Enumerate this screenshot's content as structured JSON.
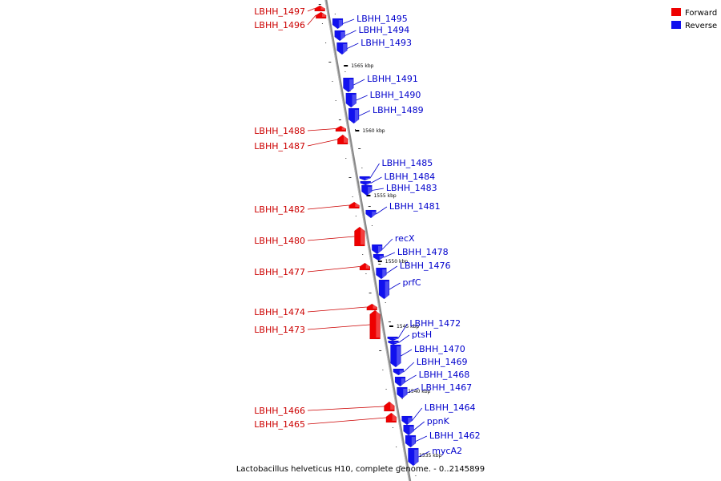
{
  "legend": [
    {
      "label": "Forward",
      "color": "#ee0000"
    },
    {
      "label": "Reverse",
      "color": "#1111ee"
    }
  ],
  "caption": "Lactobacillus helveticus H10, complete genome. - 0..2145899",
  "kbp_marks": [
    "1565 kbp",
    "1560 kbp",
    "1555 kbp",
    "1550 kbp",
    "1545 kbp",
    "1540 kbp",
    "1535 kbp"
  ],
  "forward_genes": [
    "LBHH_1497",
    "LBHH_1496",
    "LBHH_1488",
    "LBHH_1487",
    "LBHH_1482",
    "LBHH_1480",
    "LBHH_1477",
    "LBHH_1474",
    "LBHH_1473",
    "LBHH_1466",
    "LBHH_1465"
  ],
  "reverse_genes": [
    "LBHH_1495",
    "LBHH_1494",
    "LBHH_1493",
    "LBHH_1491",
    "LBHH_1490",
    "LBHH_1489",
    "LBHH_1485",
    "LBHH_1484",
    "LBHH_1483",
    "LBHH_1481",
    "recX",
    "LBHH_1478",
    "LBHH_1476",
    "prfC",
    "LBHH_1472",
    "ptsH",
    "LBHH_1470",
    "LBHH_1469",
    "LBHH_1468",
    "LBHH_1467",
    "LBHH_1464",
    "ppnK",
    "LBHH_1462",
    "mycA2"
  ]
}
